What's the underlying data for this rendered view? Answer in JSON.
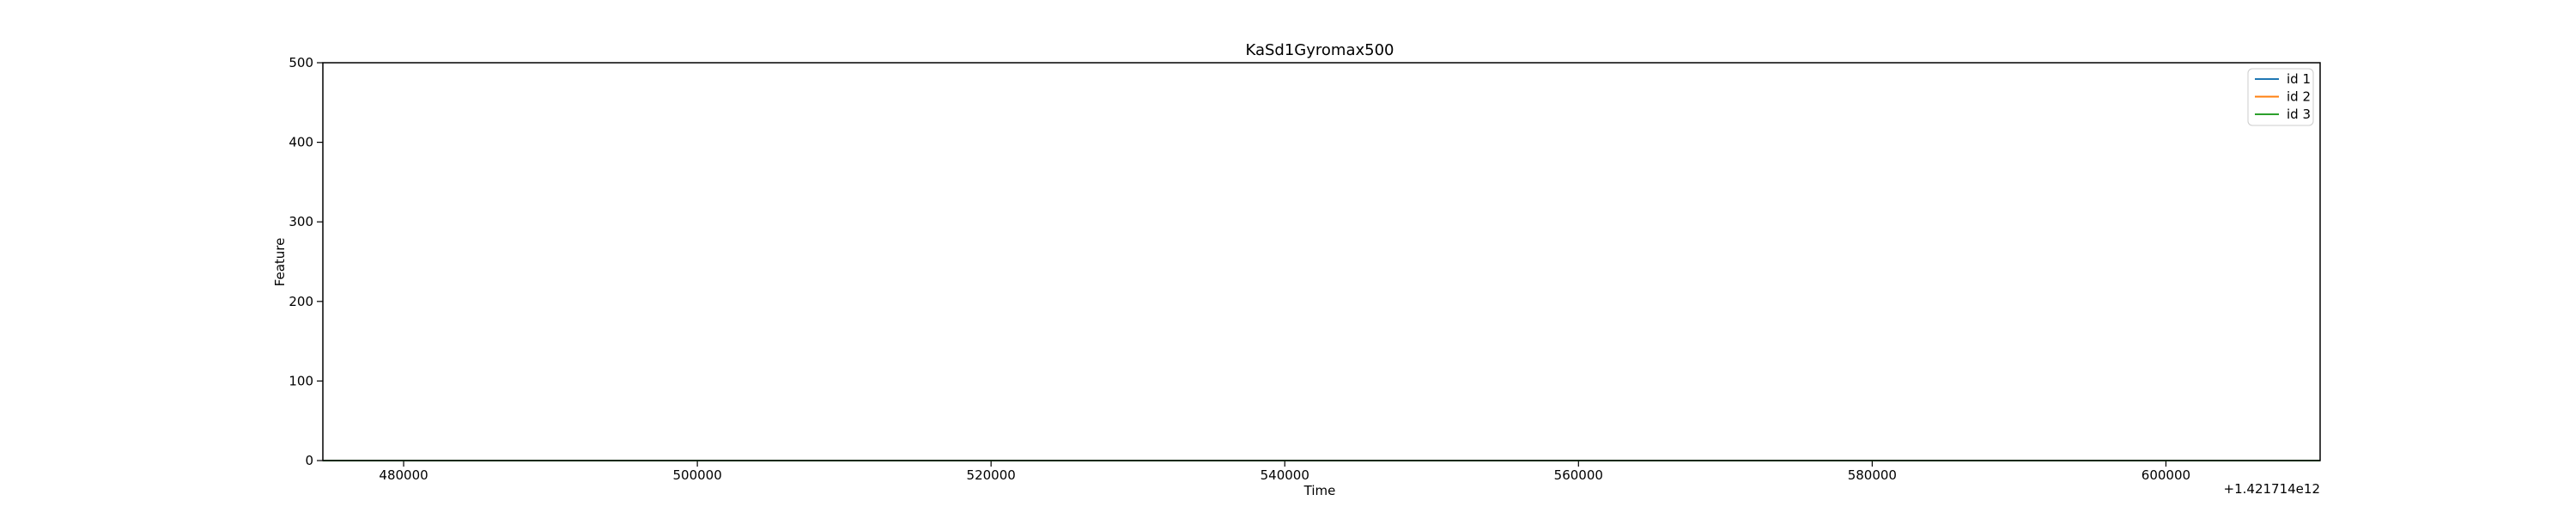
{
  "chart_data": {
    "type": "line",
    "title": "KaSd1Gyromax500",
    "xlabel": "Time",
    "ylabel": "Feature",
    "x_offset_label": "+1.421714e12",
    "xlim": [
      474500,
      610500
    ],
    "ylim": [
      0,
      500
    ],
    "x_ticks": [
      480000,
      500000,
      520000,
      540000,
      560000,
      580000,
      600000
    ],
    "x_tick_labels": [
      "480000",
      "500000",
      "520000",
      "540000",
      "560000",
      "580000",
      "600000"
    ],
    "y_ticks": [
      0,
      100,
      200,
      300,
      400,
      500
    ],
    "y_tick_labels": [
      "0",
      "100",
      "200",
      "300",
      "400",
      "500"
    ],
    "grid": false,
    "legend_position": "top-right",
    "series": [
      {
        "name": "id 1",
        "color": "#1f77b4",
        "x": [
          474500,
          610500
        ],
        "y": [
          0,
          0
        ]
      },
      {
        "name": "id 2",
        "color": "#ff7f0e",
        "x": [
          474500,
          610500
        ],
        "y": [
          0,
          0
        ]
      },
      {
        "name": "id 3",
        "color": "#2ca02c",
        "x": [
          474500,
          610500
        ],
        "y": [
          0,
          0
        ]
      }
    ]
  }
}
